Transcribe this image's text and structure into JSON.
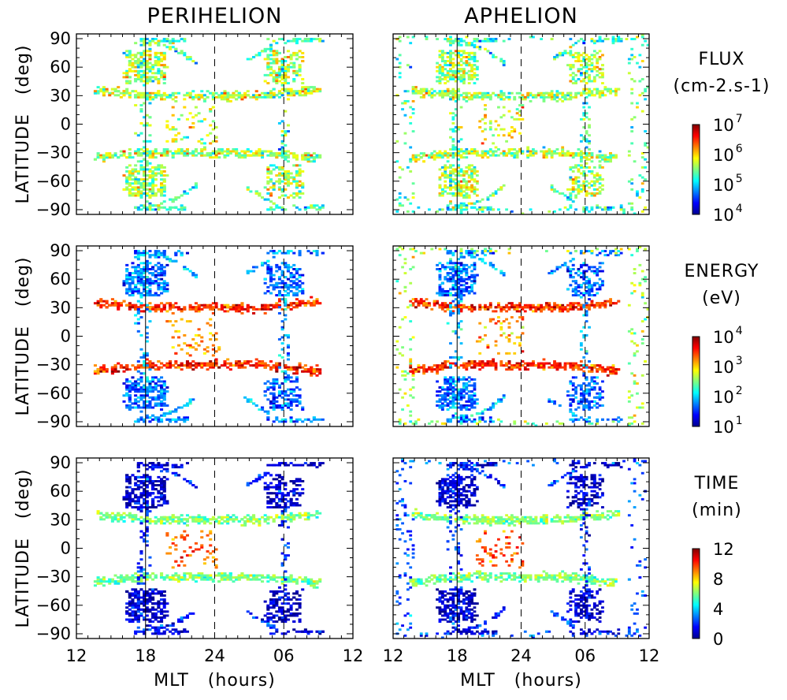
{
  "columns": [
    "PERIHELION",
    "APHELION"
  ],
  "colors": {
    "colormap": [
      "#00008f",
      "#0000ff",
      "#0080ff",
      "#00ffff",
      "#80ff80",
      "#ffff00",
      "#ff8000",
      "#ff0000",
      "#800000"
    ],
    "guide_lines": "#000000"
  },
  "chart_data": [
    {
      "type": "heatmap",
      "panel": "perihelion-flux",
      "row": 0,
      "col": 0,
      "quantity": "flux",
      "xlabel": "",
      "ylabel": "LATITUDE (deg)",
      "x_tick_labels": [
        "12",
        "18",
        "24",
        "06",
        "12"
      ],
      "y_ticks": [
        90,
        60,
        30,
        0,
        -30,
        -60,
        -90
      ],
      "ylim": [
        -95,
        95
      ],
      "xlim_hours_mlt": [
        12,
        36
      ],
      "guide_lines_mlt": [
        18,
        24,
        30
      ],
      "color_scale": "log",
      "color_range": [
        10000,
        10000000
      ]
    },
    {
      "type": "heatmap",
      "panel": "aphelion-flux",
      "row": 0,
      "col": 1,
      "quantity": "flux",
      "xlabel": "",
      "ylabel": "",
      "x_tick_labels": [
        "12",
        "18",
        "24",
        "06",
        "12"
      ],
      "y_ticks": [
        90,
        60,
        30,
        0,
        -30,
        -60,
        -90
      ],
      "ylim": [
        -95,
        95
      ],
      "xlim_hours_mlt": [
        12,
        36
      ],
      "guide_lines_mlt": [
        18,
        24,
        30
      ],
      "color_scale": "log",
      "color_range": [
        10000,
        10000000
      ]
    },
    {
      "type": "heatmap",
      "panel": "perihelion-energy",
      "row": 1,
      "col": 0,
      "quantity": "energy",
      "xlabel": "",
      "ylabel": "LATITUDE (deg)",
      "x_tick_labels": [
        "12",
        "18",
        "24",
        "06",
        "12"
      ],
      "y_ticks": [
        90,
        60,
        30,
        0,
        -30,
        -60,
        -90
      ],
      "ylim": [
        -95,
        95
      ],
      "xlim_hours_mlt": [
        12,
        36
      ],
      "guide_lines_mlt": [
        18,
        24,
        30
      ],
      "color_scale": "log",
      "color_range": [
        10,
        10000
      ]
    },
    {
      "type": "heatmap",
      "panel": "aphelion-energy",
      "row": 1,
      "col": 1,
      "quantity": "energy",
      "xlabel": "",
      "ylabel": "",
      "x_tick_labels": [
        "12",
        "18",
        "24",
        "06",
        "12"
      ],
      "y_ticks": [
        90,
        60,
        30,
        0,
        -30,
        -60,
        -90
      ],
      "ylim": [
        -95,
        95
      ],
      "xlim_hours_mlt": [
        12,
        36
      ],
      "guide_lines_mlt": [
        18,
        24,
        30
      ],
      "color_scale": "log",
      "color_range": [
        10,
        10000
      ]
    },
    {
      "type": "heatmap",
      "panel": "perihelion-time",
      "row": 2,
      "col": 0,
      "quantity": "time",
      "xlabel": "MLT (hours)",
      "ylabel": "LATITUDE (deg)",
      "x_tick_labels": [
        "12",
        "18",
        "24",
        "06",
        "12"
      ],
      "y_ticks": [
        90,
        60,
        30,
        0,
        -30,
        -60,
        -90
      ],
      "ylim": [
        -95,
        95
      ],
      "xlim_hours_mlt": [
        12,
        36
      ],
      "guide_lines_mlt": [
        18,
        24,
        30
      ],
      "color_scale": "linear",
      "color_range": [
        0,
        12
      ]
    },
    {
      "type": "heatmap",
      "panel": "aphelion-time",
      "row": 2,
      "col": 1,
      "quantity": "time",
      "xlabel": "MLT (hours)",
      "ylabel": "",
      "x_tick_labels": [
        "12",
        "18",
        "24",
        "06",
        "12"
      ],
      "y_ticks": [
        90,
        60,
        30,
        0,
        -30,
        -60,
        -90
      ],
      "ylim": [
        -95,
        95
      ],
      "xlim_hours_mlt": [
        12,
        36
      ],
      "guide_lines_mlt": [
        18,
        24,
        30
      ],
      "color_scale": "linear",
      "color_range": [
        0,
        12
      ]
    }
  ],
  "colorbars": [
    {
      "quantity": "flux",
      "title_lines": [
        "FLUX",
        "(cm-2.s-1)"
      ],
      "ticks": [
        {
          "base": "10",
          "exp": "7"
        },
        {
          "base": "10",
          "exp": "6"
        },
        {
          "base": "10",
          "exp": "5"
        },
        {
          "base": "10",
          "exp": "4"
        }
      ]
    },
    {
      "quantity": "energy",
      "title_lines": [
        "ENERGY",
        "(eV)"
      ],
      "ticks": [
        {
          "base": "10",
          "exp": "4"
        },
        {
          "base": "10",
          "exp": "3"
        },
        {
          "base": "10",
          "exp": "2"
        },
        {
          "base": "10",
          "exp": "1"
        }
      ]
    },
    {
      "quantity": "time",
      "title_lines": [
        "TIME",
        "(min)"
      ],
      "ticks": [
        {
          "base": "12",
          "exp": ""
        },
        {
          "base": "8",
          "exp": ""
        },
        {
          "base": "4",
          "exp": ""
        },
        {
          "base": "0",
          "exp": ""
        }
      ]
    }
  ]
}
